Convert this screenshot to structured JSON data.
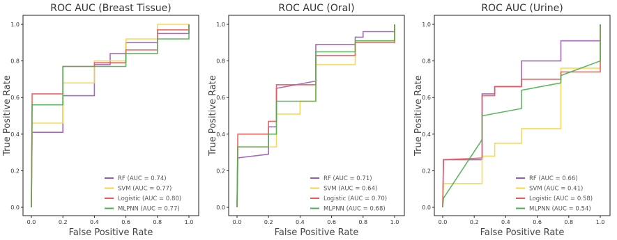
{
  "chart_data": [
    {
      "type": "line",
      "title": "ROC AUC (Breast Tissue)",
      "xlabel": "False Positive Rate",
      "ylabel": "True Positive Rate",
      "xlim": [
        0,
        1
      ],
      "ylim": [
        0,
        1
      ],
      "xticks": [
        "0.0",
        "0.2",
        "0.4",
        "0.6",
        "0.8",
        "1.0"
      ],
      "yticks": [
        "0.0",
        "0.2",
        "0.4",
        "0.6",
        "0.8",
        "1.0"
      ],
      "grid": false,
      "legend_position": "bottom-right",
      "series": [
        {
          "name": "RF (AUC = 0.74)",
          "color": "#9b59b6",
          "x": [
            0,
            0.005,
            0.2,
            0.2,
            0.4,
            0.4,
            0.5,
            0.5,
            0.6,
            0.6,
            0.8,
            0.8,
            1.0,
            1.0
          ],
          "y": [
            0,
            0.41,
            0.41,
            0.61,
            0.61,
            0.78,
            0.78,
            0.84,
            0.84,
            0.9,
            0.9,
            0.95,
            0.95,
            1.0
          ]
        },
        {
          "name": "SVM (AUC = 0.77)",
          "color": "#f7d547",
          "x": [
            0,
            0.005,
            0.2,
            0.2,
            0.4,
            0.4,
            0.6,
            0.6,
            0.8,
            0.8,
            1.0,
            1.0
          ],
          "y": [
            0,
            0.46,
            0.46,
            0.68,
            0.68,
            0.8,
            0.8,
            0.92,
            0.92,
            1.0,
            1.0,
            1.0
          ]
        },
        {
          "name": "Logistic (AUC = 0.80)",
          "color": "#f05454",
          "x": [
            0,
            0.005,
            0.2,
            0.2,
            0.4,
            0.4,
            0.6,
            0.6,
            0.8,
            0.8,
            1.0,
            1.0
          ],
          "y": [
            0,
            0.62,
            0.62,
            0.77,
            0.77,
            0.79,
            0.79,
            0.86,
            0.86,
            0.97,
            0.97,
            1.0
          ]
        },
        {
          "name": "MLPNN (AUC = 0.77)",
          "color": "#4caf50",
          "x": [
            0,
            0.005,
            0.2,
            0.2,
            0.4,
            0.4,
            0.6,
            0.6,
            0.8,
            0.8,
            1.0,
            1.0
          ],
          "y": [
            0,
            0.56,
            0.56,
            0.77,
            0.77,
            0.77,
            0.77,
            0.84,
            0.84,
            0.92,
            0.92,
            1.0
          ]
        }
      ]
    },
    {
      "type": "line",
      "title": "ROC AUC (Oral)",
      "xlabel": "False Positive Rate",
      "ylabel": "True Positive Rate",
      "xlim": [
        0,
        1
      ],
      "ylim": [
        0,
        1
      ],
      "xticks": [
        "0.0",
        "0.2",
        "0.4",
        "0.6",
        "0.8",
        "1.0"
      ],
      "yticks": [
        "0.0",
        "0.2",
        "0.4",
        "0.6",
        "0.8",
        "1.0"
      ],
      "grid": false,
      "legend_position": "bottom-right",
      "series": [
        {
          "name": "RF (AUC = 0.71)",
          "color": "#9b59b6",
          "x": [
            0,
            0.005,
            0.2,
            0.2,
            0.25,
            0.25,
            0.5,
            0.5,
            0.75,
            0.75,
            0.8,
            0.8,
            1.0,
            1.0
          ],
          "y": [
            0,
            0.27,
            0.29,
            0.44,
            0.44,
            0.65,
            0.69,
            0.89,
            0.89,
            0.93,
            0.93,
            0.96,
            0.96,
            1.0
          ]
        },
        {
          "name": "SVM (AUC = 0.64)",
          "color": "#f7d547",
          "x": [
            0,
            0.005,
            0.25,
            0.25,
            0.4,
            0.4,
            0.5,
            0.5,
            0.75,
            0.75,
            1.0,
            1.0
          ],
          "y": [
            0,
            0.33,
            0.33,
            0.51,
            0.51,
            0.58,
            0.58,
            0.78,
            0.78,
            0.91,
            0.91,
            1.0
          ]
        },
        {
          "name": "Logistic (AUC = 0.70)",
          "color": "#f05454",
          "x": [
            0,
            0.005,
            0.2,
            0.2,
            0.25,
            0.25,
            0.5,
            0.5,
            0.75,
            0.75,
            1.0,
            1.0
          ],
          "y": [
            0,
            0.4,
            0.4,
            0.47,
            0.47,
            0.67,
            0.67,
            0.83,
            0.83,
            0.9,
            0.9,
            1.0
          ]
        },
        {
          "name": "MLPNN (AUC = 0.68)",
          "color": "#4caf50",
          "x": [
            0,
            0.005,
            0.2,
            0.2,
            0.25,
            0.25,
            0.5,
            0.5,
            0.75,
            0.75,
            1.0,
            1.0
          ],
          "y": [
            0,
            0.33,
            0.33,
            0.4,
            0.4,
            0.58,
            0.58,
            0.85,
            0.85,
            0.91,
            0.91,
            1.0
          ]
        }
      ]
    },
    {
      "type": "line",
      "title": "ROC AUC (Urine)",
      "xlabel": "False Positive Rate",
      "ylabel": "True Positive Rate",
      "xlim": [
        0,
        1
      ],
      "ylim": [
        0,
        1
      ],
      "xticks": [
        "0.0",
        "0.2",
        "0.4",
        "0.6",
        "0.8",
        "1.0"
      ],
      "yticks": [
        "0.0",
        "0.2",
        "0.4",
        "0.6",
        "0.8",
        "1.0"
      ],
      "grid": false,
      "legend_position": "bottom-right",
      "series": [
        {
          "name": "RF (AUC = 0.66)",
          "color": "#9b59b6",
          "x": [
            0,
            0.005,
            0.25,
            0.25,
            0.33,
            0.33,
            0.5,
            0.5,
            0.75,
            0.75,
            1.0,
            1.0
          ],
          "y": [
            0,
            0.26,
            0.26,
            0.62,
            0.62,
            0.66,
            0.66,
            0.8,
            0.8,
            0.91,
            0.91,
            1.0
          ]
        },
        {
          "name": "SVM (AUC = 0.41)",
          "color": "#f7d547",
          "x": [
            0,
            0.005,
            0.25,
            0.25,
            0.33,
            0.33,
            0.5,
            0.5,
            0.75,
            0.75,
            1.0,
            1.0
          ],
          "y": [
            0,
            0.13,
            0.13,
            0.28,
            0.28,
            0.35,
            0.35,
            0.43,
            0.43,
            0.76,
            0.76,
            1.0
          ]
        },
        {
          "name": "Logistic (AUC = 0.58)",
          "color": "#f05454",
          "x": [
            0,
            0.005,
            0.25,
            0.25,
            0.33,
            0.33,
            0.5,
            0.5,
            0.75,
            0.75,
            1.0,
            1.0
          ],
          "y": [
            0,
            0.26,
            0.27,
            0.61,
            0.61,
            0.66,
            0.66,
            0.7,
            0.7,
            0.74,
            0.74,
            1.0
          ]
        },
        {
          "name": "MLPNN (AUC = 0.54)",
          "color": "#4caf50",
          "x": [
            0,
            0.005,
            0.25,
            0.25,
            0.5,
            0.5,
            0.75,
            0.75,
            1.0,
            1.0
          ],
          "y": [
            0,
            0.05,
            0.37,
            0.5,
            0.54,
            0.64,
            0.68,
            0.72,
            0.8,
            1.0
          ]
        }
      ]
    }
  ]
}
